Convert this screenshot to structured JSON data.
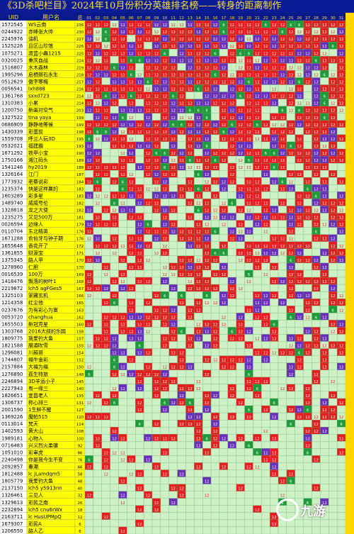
{
  "title": "《3D杀吧栏目》2024年10月份积分英雄排名榜——转身的距离制作",
  "header": {
    "uid_label": "UID",
    "name_label": "用户名",
    "total_label": "总",
    "days": [
      "01",
      "02",
      "03",
      "04",
      "05",
      "06",
      "07",
      "08",
      "09",
      "10",
      "11",
      "12",
      "13",
      "14",
      "15",
      "16",
      "17",
      "18",
      "19",
      "20",
      "21",
      "22",
      "23",
      "24",
      "25",
      "26",
      "27",
      "28",
      "29",
      "30",
      "31"
    ]
  },
  "colors": {
    "bg": "#0a1a8a",
    "uid_cell": "#ffffff",
    "name_cell": "#ffff00",
    "total_cell": "#ffff00",
    "grid_light": "#cdf0c4",
    "grid_border": "#7ab87a",
    "mark_red": "#e41e1e",
    "mark_purple": "#6a2fb8",
    "mark_green": "#1f9a3a",
    "last_col": "#ffd700"
  },
  "cell_values": {
    "red": "12",
    "purple": "12",
    "green": "6"
  },
  "rows": [
    {
      "uid": "1572545",
      "name": "WS云南",
      "total": "236"
    },
    {
      "uid": "0244922",
      "name": "赤峰张大帅",
      "total": "230"
    },
    {
      "uid": "2245976",
      "name": "油机",
      "total": "227"
    },
    {
      "uid": "1525226",
      "name": "且区山珍馆",
      "total": "226"
    },
    {
      "uid": "1075271",
      "name": "渡蓝小蟲1215",
      "total": "225"
    },
    {
      "uid": "0320025",
      "name": "重庆血战",
      "total": "224"
    },
    {
      "uid": "1516807",
      "name": "水木森林",
      "total": "219"
    },
    {
      "uid": "1995296",
      "name": "启栖碧石永生",
      "total": "218"
    },
    {
      "uid": "0512629",
      "name": "傲字寒梅",
      "total": "217"
    },
    {
      "uid": "0056541",
      "name": "lxh888",
      "total": "216"
    },
    {
      "uid": "1361768",
      "name": "sxxd723",
      "total": "214"
    },
    {
      "uid": "1310383",
      "name": "小累",
      "total": "214"
    },
    {
      "uid": "1200750",
      "name": "新画对空气",
      "total": "203"
    },
    {
      "uid": "1327522",
      "name": "tina yaya",
      "total": "199"
    },
    {
      "uid": "0686909",
      "name": "静静地等候",
      "total": "199"
    },
    {
      "uid": "1430339",
      "name": "彩蛋前",
      "total": "198"
    },
    {
      "uid": "1559708",
      "name": "呼兰人玩3D",
      "total": "195"
    },
    {
      "uid": "0532021",
      "name": "福建霸",
      "total": "193"
    },
    {
      "uid": "1671292",
      "name": "铁甲小宝",
      "total": "190"
    },
    {
      "uid": "1750166",
      "name": "湘江码头",
      "total": "189"
    },
    {
      "uid": "1541246",
      "name": "hy2019",
      "total": "188"
    },
    {
      "uid": "1326164",
      "name": "江门",
      "total": "187"
    },
    {
      "uid": "1773932",
      "name": "老蔡说彩",
      "total": "184"
    },
    {
      "uid": "1235374",
      "name": "快是这样赢的",
      "total": "183"
    },
    {
      "uid": "1603289",
      "name": "彩多星",
      "total": "183"
    },
    {
      "uid": "1489740",
      "name": "威威号伦",
      "total": "182"
    },
    {
      "uid": "1328818",
      "name": "龙之大使",
      "total": "182"
    },
    {
      "uid": "1235275",
      "name": "又见500万",
      "total": "181"
    },
    {
      "uid": "0026594",
      "name": "边缘人",
      "total": "179"
    },
    {
      "uid": "0110704",
      "name": "东北精英",
      "total": "176"
    },
    {
      "uid": "1671288",
      "name": "俞伯牙与钟子期",
      "total": "176"
    },
    {
      "uid": "1655648",
      "name": "香花开了",
      "total": "172"
    },
    {
      "uid": "1361855",
      "name": "财源宝",
      "total": "171"
    },
    {
      "uid": "1375345",
      "name": "路人甲",
      "total": "170"
    },
    {
      "uid": "1278960",
      "name": "仁胆",
      "total": "170"
    },
    {
      "uid": "0016539",
      "name": "100万",
      "total": "169"
    },
    {
      "uid": "1418476",
      "name": "飘落的树叶1",
      "total": "168"
    },
    {
      "uid": "2219872",
      "name": "lch5 agFGes5",
      "total": "167"
    },
    {
      "uid": "1325103",
      "name": "家藏玄机",
      "total": "166"
    },
    {
      "uid": "1214358",
      "name": "红尘他",
      "total": "165"
    },
    {
      "uid": "0237676",
      "name": "为有彩心为富",
      "total": "163"
    },
    {
      "uid": "0053720",
      "name": "changhua",
      "total": "162"
    },
    {
      "uid": "1655503",
      "name": "新冠克星",
      "total": "160"
    },
    {
      "uid": "1303768",
      "name": "2016大叔的乐园",
      "total": "158"
    },
    {
      "uid": "1809775",
      "name": "我爱钓大鱼",
      "total": "157"
    },
    {
      "uid": "1821588",
      "name": "腊酒吹雪",
      "total": "155"
    },
    {
      "uid": "1296081",
      "name": "川超哥",
      "total": "154"
    },
    {
      "uid": "1744807",
      "name": "福牛金彩",
      "total": "152"
    },
    {
      "uid": "2157884",
      "name": "大福为福",
      "total": "150"
    },
    {
      "uid": "1276890",
      "name": "荔生特旅",
      "total": "148"
    },
    {
      "uid": "2246894",
      "name": "3D羊运小子",
      "total": "145"
    },
    {
      "uid": "2227943",
      "name": "有一缘三",
      "total": "140"
    },
    {
      "uid": "1826651",
      "name": "宜昌老人",
      "total": "135"
    },
    {
      "uid": "1306737",
      "name": "称心排三",
      "total": "131"
    },
    {
      "uid": "2001590",
      "name": "1生醉不醒",
      "total": "127"
    },
    {
      "uid": "1369226",
      "name": "魔帕515",
      "total": "120"
    },
    {
      "uid": "0113014",
      "name": "梵天",
      "total": "114"
    },
    {
      "uid": "1402593",
      "name": "黄大山",
      "total": "108"
    },
    {
      "uid": "1989181",
      "name": "心物入",
      "total": "100"
    },
    {
      "uid": "0716483",
      "name": "兴义烈火柔骥",
      "total": "92"
    },
    {
      "uid": "1051010",
      "name": "彩审虎",
      "total": "86"
    },
    {
      "uid": "2240498",
      "name": "你是我今生不变",
      "total": "76"
    },
    {
      "uid": "2092857",
      "name": "春潮",
      "total": "66"
    },
    {
      "uid": "1812488",
      "name": "lc jLamdqm5",
      "total": "58"
    },
    {
      "uid": "1805779",
      "name": "我爱钓大鱼",
      "total": "48"
    },
    {
      "uid": "2137150",
      "name": "lch5 y5913nn",
      "total": "40"
    },
    {
      "uid": "1326461",
      "name": "三见人",
      "total": "32"
    },
    {
      "uid": "1329613",
      "name": "彩民之南",
      "total": "26"
    },
    {
      "uid": "2232894",
      "name": "lch5 cnu6rWx",
      "total": "18"
    },
    {
      "uid": "2163711",
      "name": "lc HusUPMpQ",
      "total": "12"
    },
    {
      "uid": "1679307",
      "name": "彩民A",
      "total": "6"
    },
    {
      "uid": "1206550",
      "name": "路人乙",
      "total": "6"
    }
  ],
  "watermark": {
    "text": "九游",
    "icon": "ninegame-logo-icon"
  }
}
